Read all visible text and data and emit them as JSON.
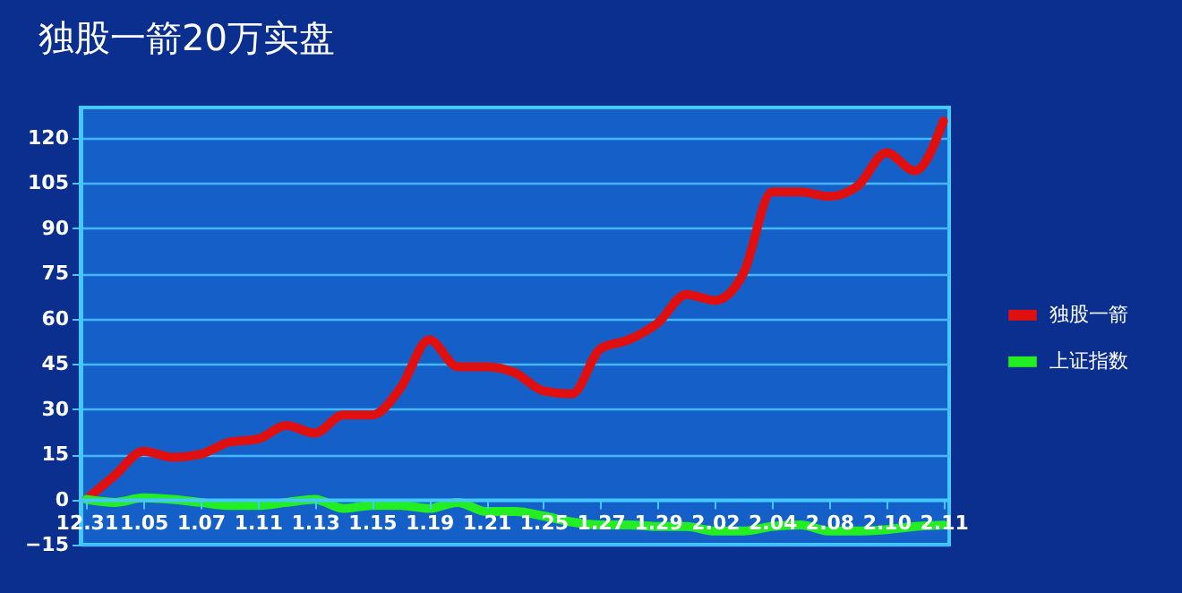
{
  "chart_data": {
    "type": "line",
    "title": "独股一箭20万实盘",
    "categories": [
      "12.31",
      null,
      "1.05",
      null,
      "1.07",
      null,
      "1.11",
      null,
      "1.13",
      null,
      "1.15",
      null,
      "1.19",
      null,
      "1.21",
      null,
      "1.25",
      null,
      "1.27",
      null,
      "1.29",
      null,
      "2.02",
      null,
      "2.04",
      null,
      "2.08",
      null,
      "2.10",
      null,
      "2.11"
    ],
    "series": [
      {
        "name": "独股一箭",
        "color": "#e01010",
        "values": [
          0,
          8,
          16,
          14,
          15,
          19,
          20,
          24.5,
          22,
          28,
          28,
          37,
          53,
          44,
          44,
          42,
          36,
          35,
          50,
          53,
          58.5,
          68,
          66,
          75,
          102,
          102,
          100.5,
          104,
          115,
          109,
          125.5
        ]
      },
      {
        "name": "上证指数",
        "color": "#22ee22",
        "values": [
          0,
          -1,
          0.5,
          0,
          -1,
          -2,
          -2,
          -1,
          0,
          -3,
          -2,
          -2,
          -3,
          -1,
          -4,
          -4,
          -5.5,
          -7.5,
          -8.5,
          -8.5,
          -9,
          -9,
          -10.5,
          -10.5,
          -9,
          -8.5,
          -10.5,
          -10.5,
          -10,
          -9,
          -8.5
        ]
      }
    ],
    "ylim": [
      -15,
      130
    ],
    "yticks": [
      -15,
      0,
      15,
      30,
      45,
      60,
      75,
      90,
      105,
      120
    ],
    "grid": "y",
    "legend": "right"
  }
}
